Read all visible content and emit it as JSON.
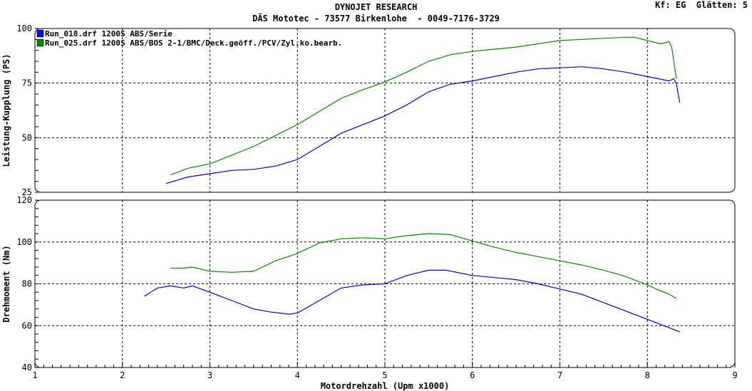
{
  "header": {
    "title": "DYNOJET RESEARCH",
    "subtitle": "DÄS Mototec - 73577 Birkenlohe  - 0049-7176-3729",
    "settings": "Kf: EG  Glätten: 5"
  },
  "colors": {
    "blue": "#0000dd",
    "green": "#008800",
    "grid": "#000000",
    "background": "#ffffff"
  },
  "chart_data": [
    {
      "type": "line",
      "ylabel": "Leistung-Kupplung (PS)",
      "xlabel": "",
      "xlim": [
        1,
        9
      ],
      "ylim": [
        25,
        100
      ],
      "yticks": [
        25,
        50,
        75,
        100
      ],
      "grid": true,
      "legend": "top-left",
      "series": [
        {
          "name": "Run_018.drf 1200S ABS/Serie",
          "color": "#0000dd",
          "x": [
            2.5,
            2.75,
            3.0,
            3.25,
            3.5,
            3.75,
            4.0,
            4.25,
            4.5,
            4.75,
            5.0,
            5.25,
            5.5,
            5.75,
            6.0,
            6.25,
            6.5,
            6.75,
            7.0,
            7.25,
            7.5,
            7.75,
            8.0,
            8.25,
            8.3,
            8.33,
            8.37
          ],
          "y": [
            29,
            32,
            33.5,
            35,
            35.5,
            37,
            40,
            46,
            52,
            56,
            60,
            65,
            71,
            74.5,
            76,
            78,
            80,
            81.5,
            82,
            82.5,
            81.5,
            80,
            78,
            76,
            77,
            75,
            66
          ]
        },
        {
          "name": "Run_025.drf 1200S ABS/BOS 2-1/BMC/Deck.geöff./PCV/Zyl.ko.bearb.",
          "color": "#008800",
          "x": [
            2.55,
            2.75,
            3.0,
            3.25,
            3.5,
            3.75,
            4.0,
            4.25,
            4.5,
            4.75,
            5.0,
            5.25,
            5.5,
            5.75,
            6.0,
            6.25,
            6.5,
            6.75,
            7.0,
            7.25,
            7.5,
            7.75,
            7.85,
            8.0,
            8.15,
            8.25,
            8.28,
            8.33
          ],
          "y": [
            33,
            36,
            38,
            42,
            46,
            51,
            56,
            62,
            68,
            72,
            75.5,
            80,
            85,
            88,
            89.5,
            90.5,
            91.5,
            93,
            94.5,
            95,
            95.5,
            96,
            96,
            94.5,
            93,
            94,
            91,
            77
          ]
        }
      ]
    },
    {
      "type": "line",
      "ylabel": "Drehmoment (Nm)",
      "xlabel": "Motordrehzahl (Upm x1000)",
      "xlim": [
        1,
        9
      ],
      "ylim": [
        40,
        120
      ],
      "xticks": [
        1,
        2,
        3,
        4,
        5,
        6,
        7,
        8,
        9
      ],
      "yticks": [
        40,
        60,
        80,
        100,
        120
      ],
      "grid": true,
      "series": [
        {
          "name": "Run_018.drf 1200S ABS/Serie",
          "color": "#0000dd",
          "x": [
            2.25,
            2.4,
            2.55,
            2.7,
            2.8,
            3.0,
            3.25,
            3.5,
            3.7,
            3.9,
            4.0,
            4.25,
            4.5,
            4.75,
            5.0,
            5.25,
            5.5,
            5.7,
            6.0,
            6.25,
            6.5,
            6.75,
            7.0,
            7.25,
            7.5,
            7.75,
            8.0,
            8.25,
            8.37
          ],
          "y": [
            74,
            78,
            79,
            78,
            79,
            76,
            72,
            68,
            66.5,
            65.5,
            66,
            72,
            78,
            79.5,
            80,
            84,
            86.5,
            86.5,
            84,
            83,
            82,
            80,
            77.5,
            75,
            71,
            67,
            63,
            59,
            57
          ]
        },
        {
          "name": "Run_025.drf 1200S ABS/BOS 2-1/BMC/Deck.geöff./PCV/Zyl.ko.bearb.",
          "color": "#008800",
          "x": [
            2.55,
            2.7,
            2.8,
            3.0,
            3.25,
            3.5,
            3.75,
            4.0,
            4.25,
            4.5,
            4.75,
            5.0,
            5.25,
            5.5,
            5.75,
            6.0,
            6.25,
            6.5,
            6.75,
            7.0,
            7.25,
            7.5,
            7.75,
            8.0,
            8.1,
            8.25,
            8.33
          ],
          "y": [
            87.5,
            87.5,
            88,
            86,
            85.5,
            86,
            91,
            94.5,
            99.5,
            101.5,
            102,
            101.5,
            103,
            104,
            103.5,
            100.5,
            97.5,
            95,
            93,
            91,
            89,
            86.5,
            83.5,
            79.5,
            77.5,
            75,
            73
          ]
        }
      ]
    }
  ]
}
